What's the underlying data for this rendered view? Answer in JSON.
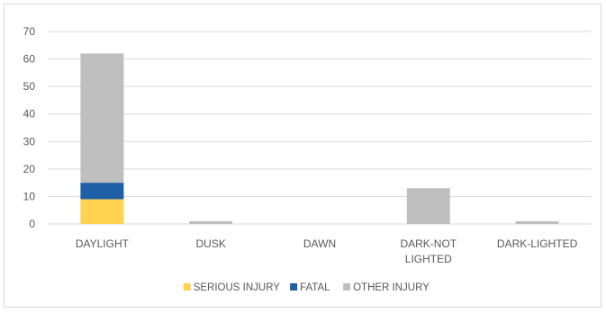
{
  "chart_data": {
    "type": "bar",
    "stacked": true,
    "title": "",
    "xlabel": "",
    "ylabel": "",
    "categories": [
      "DAYLIGHT",
      "DUSK",
      "DAWN",
      "DARK-NOT LIGHTED",
      "DARK-LIGHTED"
    ],
    "series": [
      {
        "name": "SERIOUS INJURY",
        "color": "#FFD34F",
        "values": [
          9,
          0,
          0,
          0,
          0
        ]
      },
      {
        "name": "FATAL",
        "color": "#1F5FA6",
        "values": [
          6,
          0,
          0,
          0,
          0
        ]
      },
      {
        "name": "OTHER INJURY",
        "color": "#BFBFBF",
        "values": [
          47,
          1,
          0,
          13,
          1
        ]
      }
    ],
    "ylim": [
      0,
      70
    ],
    "yticks": [
      0,
      10,
      20,
      30,
      40,
      50,
      60,
      70
    ],
    "grid": true,
    "legend_position": "bottom"
  }
}
